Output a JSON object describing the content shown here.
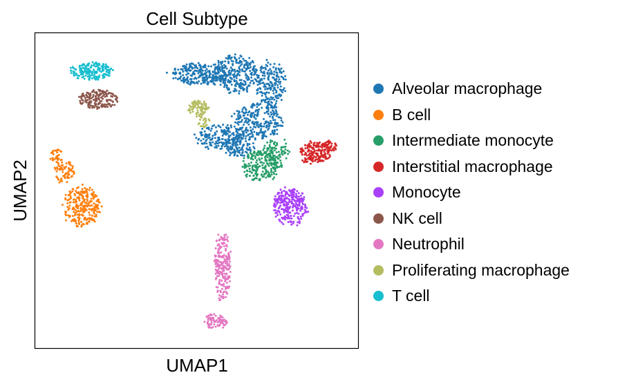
{
  "chart_data": {
    "type": "scatter",
    "title": "Cell Subtype",
    "xlabel": "UMAP1",
    "ylabel": "UMAP2",
    "xlim": [
      0,
      100
    ],
    "ylim": [
      0,
      100
    ],
    "grid": false,
    "ticks": false,
    "legend_placement": "right",
    "series": [
      {
        "name": "Alveolar macrophage",
        "color": "#1f77b4",
        "clusters": [
          {
            "cx": 51,
            "cy": 87,
            "rx": 9.5,
            "ry": 3.5,
            "n": 260
          },
          {
            "cx": 62,
            "cy": 87,
            "rx": 7.5,
            "ry": 6,
            "n": 280
          },
          {
            "cx": 73,
            "cy": 84,
            "rx": 4.5,
            "ry": 7.5,
            "n": 200
          },
          {
            "cx": 69,
            "cy": 72,
            "rx": 8,
            "ry": 5.5,
            "n": 250
          },
          {
            "cx": 57,
            "cy": 67,
            "rx": 7.5,
            "ry": 4,
            "n": 170
          },
          {
            "cx": 63,
            "cy": 64,
            "rx": 5,
            "ry": 3.5,
            "n": 110
          }
        ]
      },
      {
        "name": "B cell",
        "color": "#ff7f0e",
        "clusters": [
          {
            "cx": 14.5,
            "cy": 45,
            "rx": 6,
            "ry": 6.5,
            "n": 260
          },
          {
            "cx": 9,
            "cy": 56,
            "rx": 3,
            "ry": 4,
            "n": 70
          },
          {
            "cx": 6.5,
            "cy": 61,
            "rx": 1.8,
            "ry": 2.5,
            "n": 30
          }
        ]
      },
      {
        "name": "Intermediate monocyte",
        "color": "#279e68",
        "clusters": [
          {
            "cx": 70,
            "cy": 58,
            "rx": 6.5,
            "ry": 5,
            "n": 230
          },
          {
            "cx": 75,
            "cy": 63,
            "rx": 4,
            "ry": 3.5,
            "n": 70
          }
        ]
      },
      {
        "name": "Interstitial macrophage",
        "color": "#d62728",
        "clusters": [
          {
            "cx": 86.5,
            "cy": 62,
            "rx": 5,
            "ry": 3.5,
            "n": 170
          },
          {
            "cx": 91,
            "cy": 64,
            "rx": 2.5,
            "ry": 1.8,
            "n": 40
          }
        ]
      },
      {
        "name": "Monocyte",
        "color": "#aa40fc",
        "clusters": [
          {
            "cx": 79,
            "cy": 45,
            "rx": 5.5,
            "ry": 6,
            "n": 260
          }
        ]
      },
      {
        "name": "NK cell",
        "color": "#8c564b",
        "clusters": [
          {
            "cx": 19.5,
            "cy": 79,
            "rx": 6,
            "ry": 3,
            "n": 170
          }
        ]
      },
      {
        "name": "Neutrophil",
        "color": "#e377c2",
        "clusters": [
          {
            "cx": 58,
            "cy": 26,
            "rx": 2.5,
            "ry": 11,
            "n": 220
          },
          {
            "cx": 56,
            "cy": 8.5,
            "rx": 3.5,
            "ry": 2.5,
            "n": 80
          }
        ]
      },
      {
        "name": "Proliferating macrophage",
        "color": "#b5bd61",
        "clusters": [
          {
            "cx": 50.5,
            "cy": 76,
            "rx": 3.5,
            "ry": 2.5,
            "n": 80
          },
          {
            "cx": 52,
            "cy": 72,
            "rx": 2,
            "ry": 2,
            "n": 25
          }
        ]
      },
      {
        "name": "T cell",
        "color": "#17becf",
        "clusters": [
          {
            "cx": 17.5,
            "cy": 88,
            "rx": 6.5,
            "ry": 3,
            "n": 170
          }
        ]
      }
    ]
  }
}
